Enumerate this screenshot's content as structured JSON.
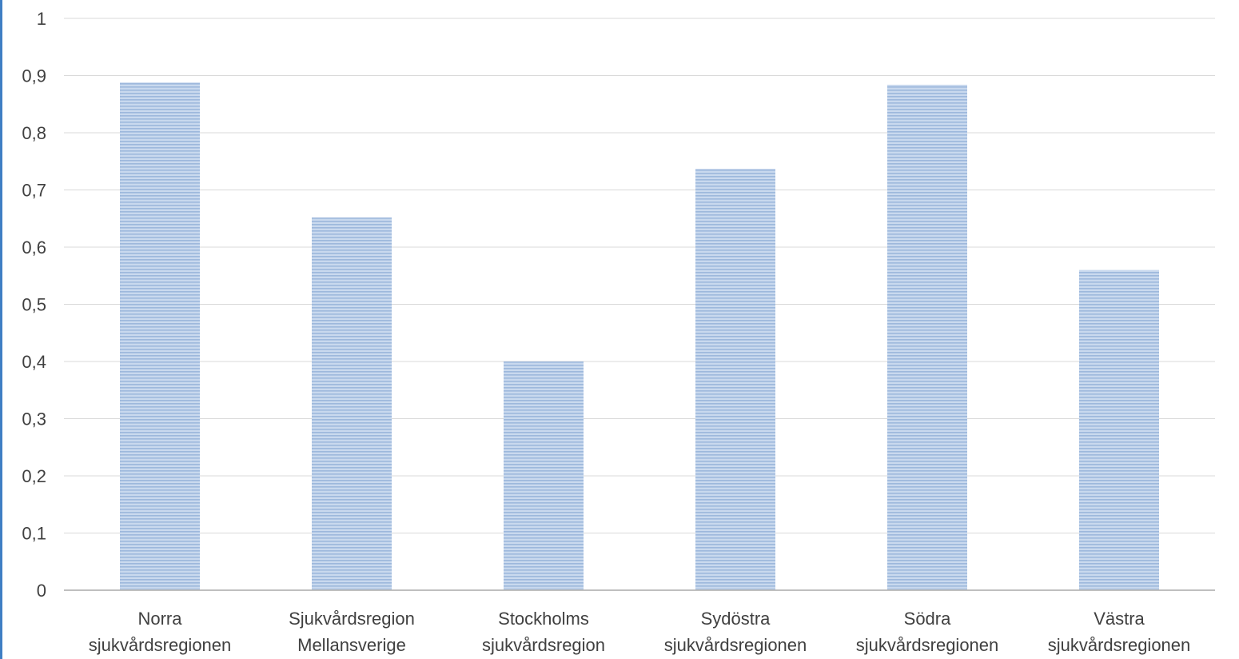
{
  "chart_data": {
    "type": "bar",
    "categories": [
      [
        "Norra",
        "sjukvårdsregionen"
      ],
      [
        "Sjukvårdsregion",
        "Mellansverige"
      ],
      [
        "Stockholms",
        "sjukvårdsregion"
      ],
      [
        "Sydöstra",
        "sjukvårdsregionen"
      ],
      [
        "Södra",
        "sjukvårdsregionen"
      ],
      [
        "Västra",
        "sjukvårdsregionen"
      ]
    ],
    "values": [
      0.888,
      0.652,
      0.4,
      0.737,
      0.884,
      0.56
    ],
    "ylim": [
      0,
      1
    ],
    "yticks": [
      0,
      0.1,
      0.2,
      0.3,
      0.4,
      0.5,
      0.6,
      0.7,
      0.8,
      0.9,
      1
    ],
    "ytick_labels": [
      "0",
      "0,1",
      "0,2",
      "0,3",
      "0,4",
      "0,5",
      "0,6",
      "0,7",
      "0,8",
      "0,9",
      "1"
    ],
    "grid": true,
    "legend": "none",
    "colors": {
      "bar_fill": "#c9d9ee",
      "bar_stripe": "#9db8dc",
      "gridline": "#d9d9d9",
      "axis": "#bfbfbf",
      "text": "#404040"
    }
  }
}
